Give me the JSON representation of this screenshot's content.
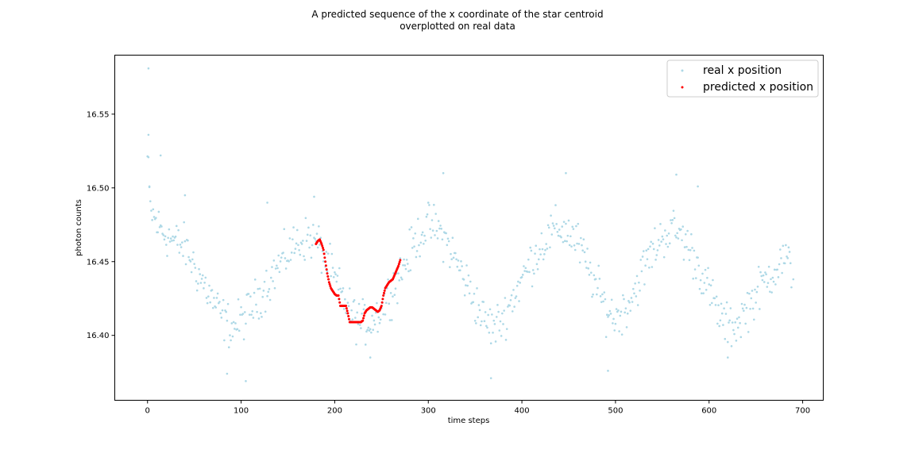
{
  "chart_data": {
    "type": "scatter",
    "title_lines": [
      "A predicted sequence of the x coordinate of the star centroid",
      "overplotted on real data"
    ],
    "xlabel": "time steps",
    "ylabel": "photon counts",
    "xlim": [
      -35,
      722
    ],
    "ylim": [
      16.356,
      16.59
    ],
    "xticks": [
      0,
      100,
      200,
      300,
      400,
      500,
      600,
      700
    ],
    "yticks": [
      16.4,
      16.45,
      16.5,
      16.55
    ],
    "ytick_labels": [
      "16.40",
      "16.45",
      "16.50",
      "16.55"
    ],
    "legend_position": "top-right",
    "series": [
      {
        "name": "real x position",
        "color": "#add8e6",
        "trend": {
          "x": [
            0,
            3,
            10,
            20,
            30,
            40,
            50,
            60,
            70,
            80,
            90,
            100,
            110,
            120,
            130,
            140,
            150,
            160,
            170,
            180,
            190,
            200,
            210,
            220,
            230,
            240,
            250,
            260,
            270,
            280,
            290,
            300,
            310,
            320,
            330,
            340,
            350,
            360,
            370,
            380,
            390,
            400,
            410,
            420,
            430,
            440,
            450,
            460,
            470,
            480,
            490,
            500,
            510,
            520,
            530,
            540,
            550,
            560,
            570,
            580,
            590,
            600,
            610,
            620,
            630,
            640,
            650,
            660,
            670,
            680,
            688
          ],
          "y": [
            16.52,
            16.485,
            16.475,
            16.468,
            16.463,
            16.46,
            16.447,
            16.435,
            16.423,
            16.412,
            16.405,
            16.41,
            16.418,
            16.427,
            16.437,
            16.447,
            16.456,
            16.463,
            16.466,
            16.464,
            16.452,
            16.437,
            16.424,
            16.413,
            16.408,
            16.41,
            16.418,
            16.43,
            16.442,
            16.455,
            16.468,
            16.475,
            16.472,
            16.463,
            16.45,
            16.437,
            16.423,
            16.41,
            16.405,
            16.412,
            16.425,
            16.438,
            16.45,
            16.46,
            16.468,
            16.473,
            16.47,
            16.462,
            16.447,
            16.432,
            16.418,
            16.412,
            16.418,
            16.43,
            16.445,
            16.458,
            16.467,
            16.472,
            16.468,
            16.458,
            16.445,
            16.43,
            16.415,
            16.405,
            16.408,
            16.418,
            16.428,
            16.437,
            16.445,
            16.452,
            16.445
          ]
        },
        "scatter_amplitude": 0.022,
        "x_range": [
          0,
          688
        ],
        "outliers": [
          {
            "x": 1,
            "y": 16.581
          },
          {
            "x": 1,
            "y": 16.536
          },
          {
            "x": 14,
            "y": 16.522
          },
          {
            "x": 2,
            "y": 16.501
          },
          {
            "x": 40,
            "y": 16.495
          },
          {
            "x": 178,
            "y": 16.494
          },
          {
            "x": 316,
            "y": 16.51
          },
          {
            "x": 447,
            "y": 16.51
          },
          {
            "x": 588,
            "y": 16.501
          },
          {
            "x": 565,
            "y": 16.509
          },
          {
            "x": 105,
            "y": 16.369
          },
          {
            "x": 367,
            "y": 16.371
          },
          {
            "x": 492,
            "y": 16.376
          },
          {
            "x": 85,
            "y": 16.374
          },
          {
            "x": 620,
            "y": 16.385
          },
          {
            "x": 238,
            "y": 16.385
          },
          {
            "x": 128,
            "y": 16.49
          },
          {
            "x": 690,
            "y": 16.438
          }
        ]
      },
      {
        "name": "predicted x position",
        "color": "#ff0000",
        "x": [
          180,
          182,
          184,
          186,
          188,
          190,
          192,
          194,
          196,
          198,
          200,
          202,
          204,
          206,
          208,
          210,
          212,
          214,
          216,
          218,
          220,
          222,
          224,
          226,
          228,
          230,
          232,
          234,
          236,
          238,
          240,
          242,
          244,
          246,
          248,
          250,
          252,
          254,
          256,
          258,
          260,
          262,
          264,
          266,
          268,
          270
        ],
        "y": [
          16.462,
          16.464,
          16.465,
          16.462,
          16.458,
          16.45,
          16.442,
          16.436,
          16.432,
          16.43,
          16.428,
          16.427,
          16.427,
          16.42,
          16.42,
          16.42,
          16.42,
          16.415,
          16.409,
          16.409,
          16.409,
          16.409,
          16.409,
          16.409,
          16.409,
          16.41,
          16.415,
          16.417,
          16.418,
          16.419,
          16.419,
          16.418,
          16.417,
          16.416,
          16.417,
          16.42,
          16.427,
          16.432,
          16.434,
          16.436,
          16.437,
          16.438,
          16.441,
          16.444,
          16.447,
          16.451
        ]
      }
    ]
  }
}
